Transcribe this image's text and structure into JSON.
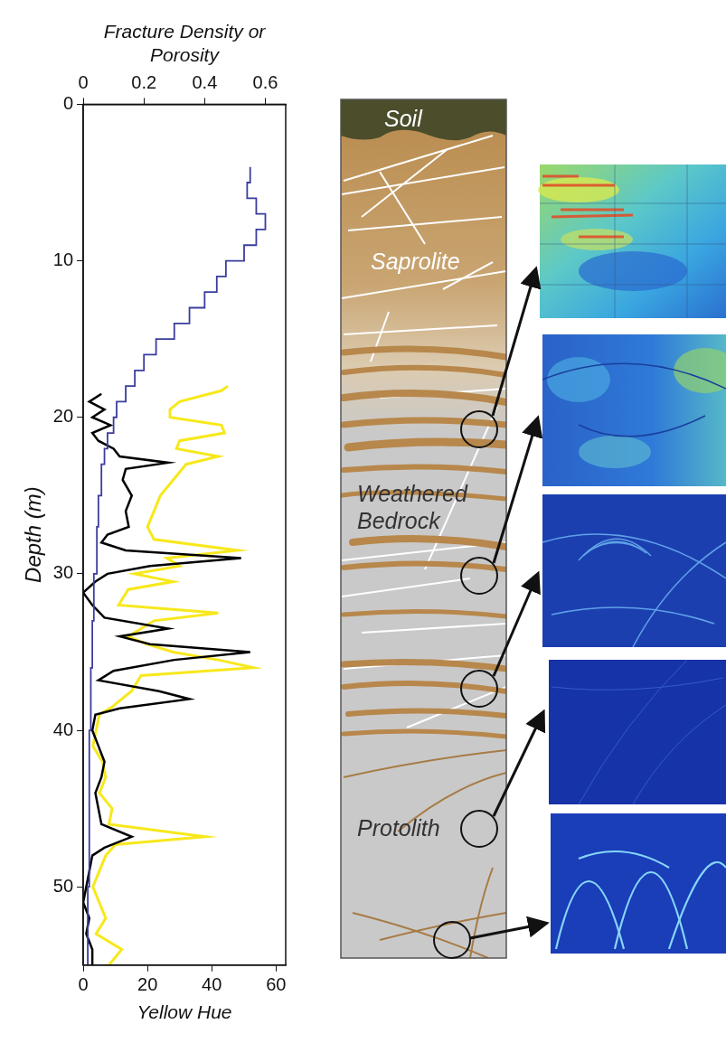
{
  "chart_data": {
    "type": "line",
    "x_label": "Yellow Hue",
    "x2_label": "Fracture Density or Porosity",
    "y_label": "Depth (m)",
    "xlim": [
      0,
      63
    ],
    "xticks": [
      0,
      20,
      40,
      60
    ],
    "x2lim": [
      0,
      0.667
    ],
    "x2ticks": [
      0,
      0.2,
      0.4,
      0.6
    ],
    "ylim": [
      0,
      55
    ],
    "yticks": [
      0,
      10,
      20,
      30,
      40,
      50
    ],
    "grid": false,
    "series": [
      {
        "color": "#3a3d9c",
        "axis": "x2",
        "line_style": "steps",
        "x": [
          0.55,
          0.54,
          0.57,
          0.6,
          0.57,
          0.53,
          0.47,
          0.44,
          0.4,
          0.35,
          0.3,
          0.24,
          0.2,
          0.17,
          0.14,
          0.11,
          0.1,
          0.08,
          0.07,
          0.06,
          0.05,
          0.045,
          0.035,
          0.03,
          0.025,
          0.02,
          0.02,
          0.015,
          0.015
        ],
        "y": [
          4,
          5,
          6,
          7,
          8,
          9,
          10,
          11,
          12,
          13,
          14,
          15,
          16,
          17,
          18,
          19,
          20,
          21,
          22,
          23,
          25,
          27,
          30,
          33,
          36,
          40,
          45,
          50,
          55
        ]
      },
      {
        "color": "#000000",
        "axis": "x2",
        "line_style": "solid",
        "x": [
          0.06,
          0.02,
          0.07,
          0.03,
          0.09,
          0.03,
          0.05,
          0.1,
          0.12,
          0.28,
          0.14,
          0.13,
          0.16,
          0.14,
          0.15,
          0.08,
          0.06,
          0.14,
          0.52,
          0.22,
          0.08,
          0.04,
          0.0,
          0.03,
          0.07,
          0.28,
          0.12,
          0.22,
          0.55,
          0.3,
          0.1,
          0.05,
          0.25,
          0.35,
          0.12,
          0.04,
          0.03,
          0.05,
          0.07,
          0.06,
          0.04,
          0.05,
          0.06,
          0.16,
          0.07,
          0.03,
          0.02,
          0.01,
          0.0,
          0.02,
          0.01,
          0.03,
          0.03
        ],
        "y": [
          18.5,
          19,
          19.5,
          20,
          20.5,
          21,
          21.5,
          22,
          22.5,
          22.9,
          23.3,
          24,
          25,
          26,
          27,
          27.5,
          28,
          28.5,
          29,
          29.5,
          30,
          30.5,
          31.2,
          32,
          32.8,
          33.5,
          34,
          34.5,
          35,
          35.5,
          36.2,
          36.8,
          37.5,
          38,
          38.6,
          39,
          40,
          41,
          42,
          43,
          44,
          45,
          46,
          46.8,
          47.5,
          48,
          49,
          50,
          51,
          52,
          53,
          54,
          55
        ]
      },
      {
        "color": "#f7e81c",
        "axis": "x",
        "line_style": "solid",
        "x": [
          45,
          43,
          30,
          27,
          27,
          43,
          44,
          30,
          29,
          42,
          32,
          28,
          24,
          22,
          20,
          22,
          48,
          26,
          30,
          16,
          28,
          14,
          11,
          42,
          22,
          14,
          20,
          28,
          42,
          53,
          18,
          15,
          9,
          5,
          4,
          3,
          6,
          7,
          5,
          9,
          8,
          38,
          10,
          7,
          5,
          3,
          5,
          7,
          4,
          12,
          8
        ],
        "y": [
          18,
          18.3,
          19,
          19.5,
          20,
          20.5,
          21,
          21.5,
          22,
          22.5,
          23,
          24,
          25,
          26,
          27,
          27.8,
          28.5,
          29,
          29.5,
          30,
          30.5,
          31,
          32,
          32.5,
          33,
          34,
          34.5,
          35,
          35.5,
          36,
          36.5,
          37.5,
          38.5,
          39,
          40,
          41,
          42,
          43,
          44,
          45,
          46,
          46.8,
          47.3,
          48,
          49,
          50,
          51,
          52,
          53,
          54,
          55
        ]
      }
    ]
  },
  "diagram": {
    "layers": [
      "Soil",
      "Saprolite",
      "Weathered Bedrock",
      "Protolith"
    ]
  }
}
